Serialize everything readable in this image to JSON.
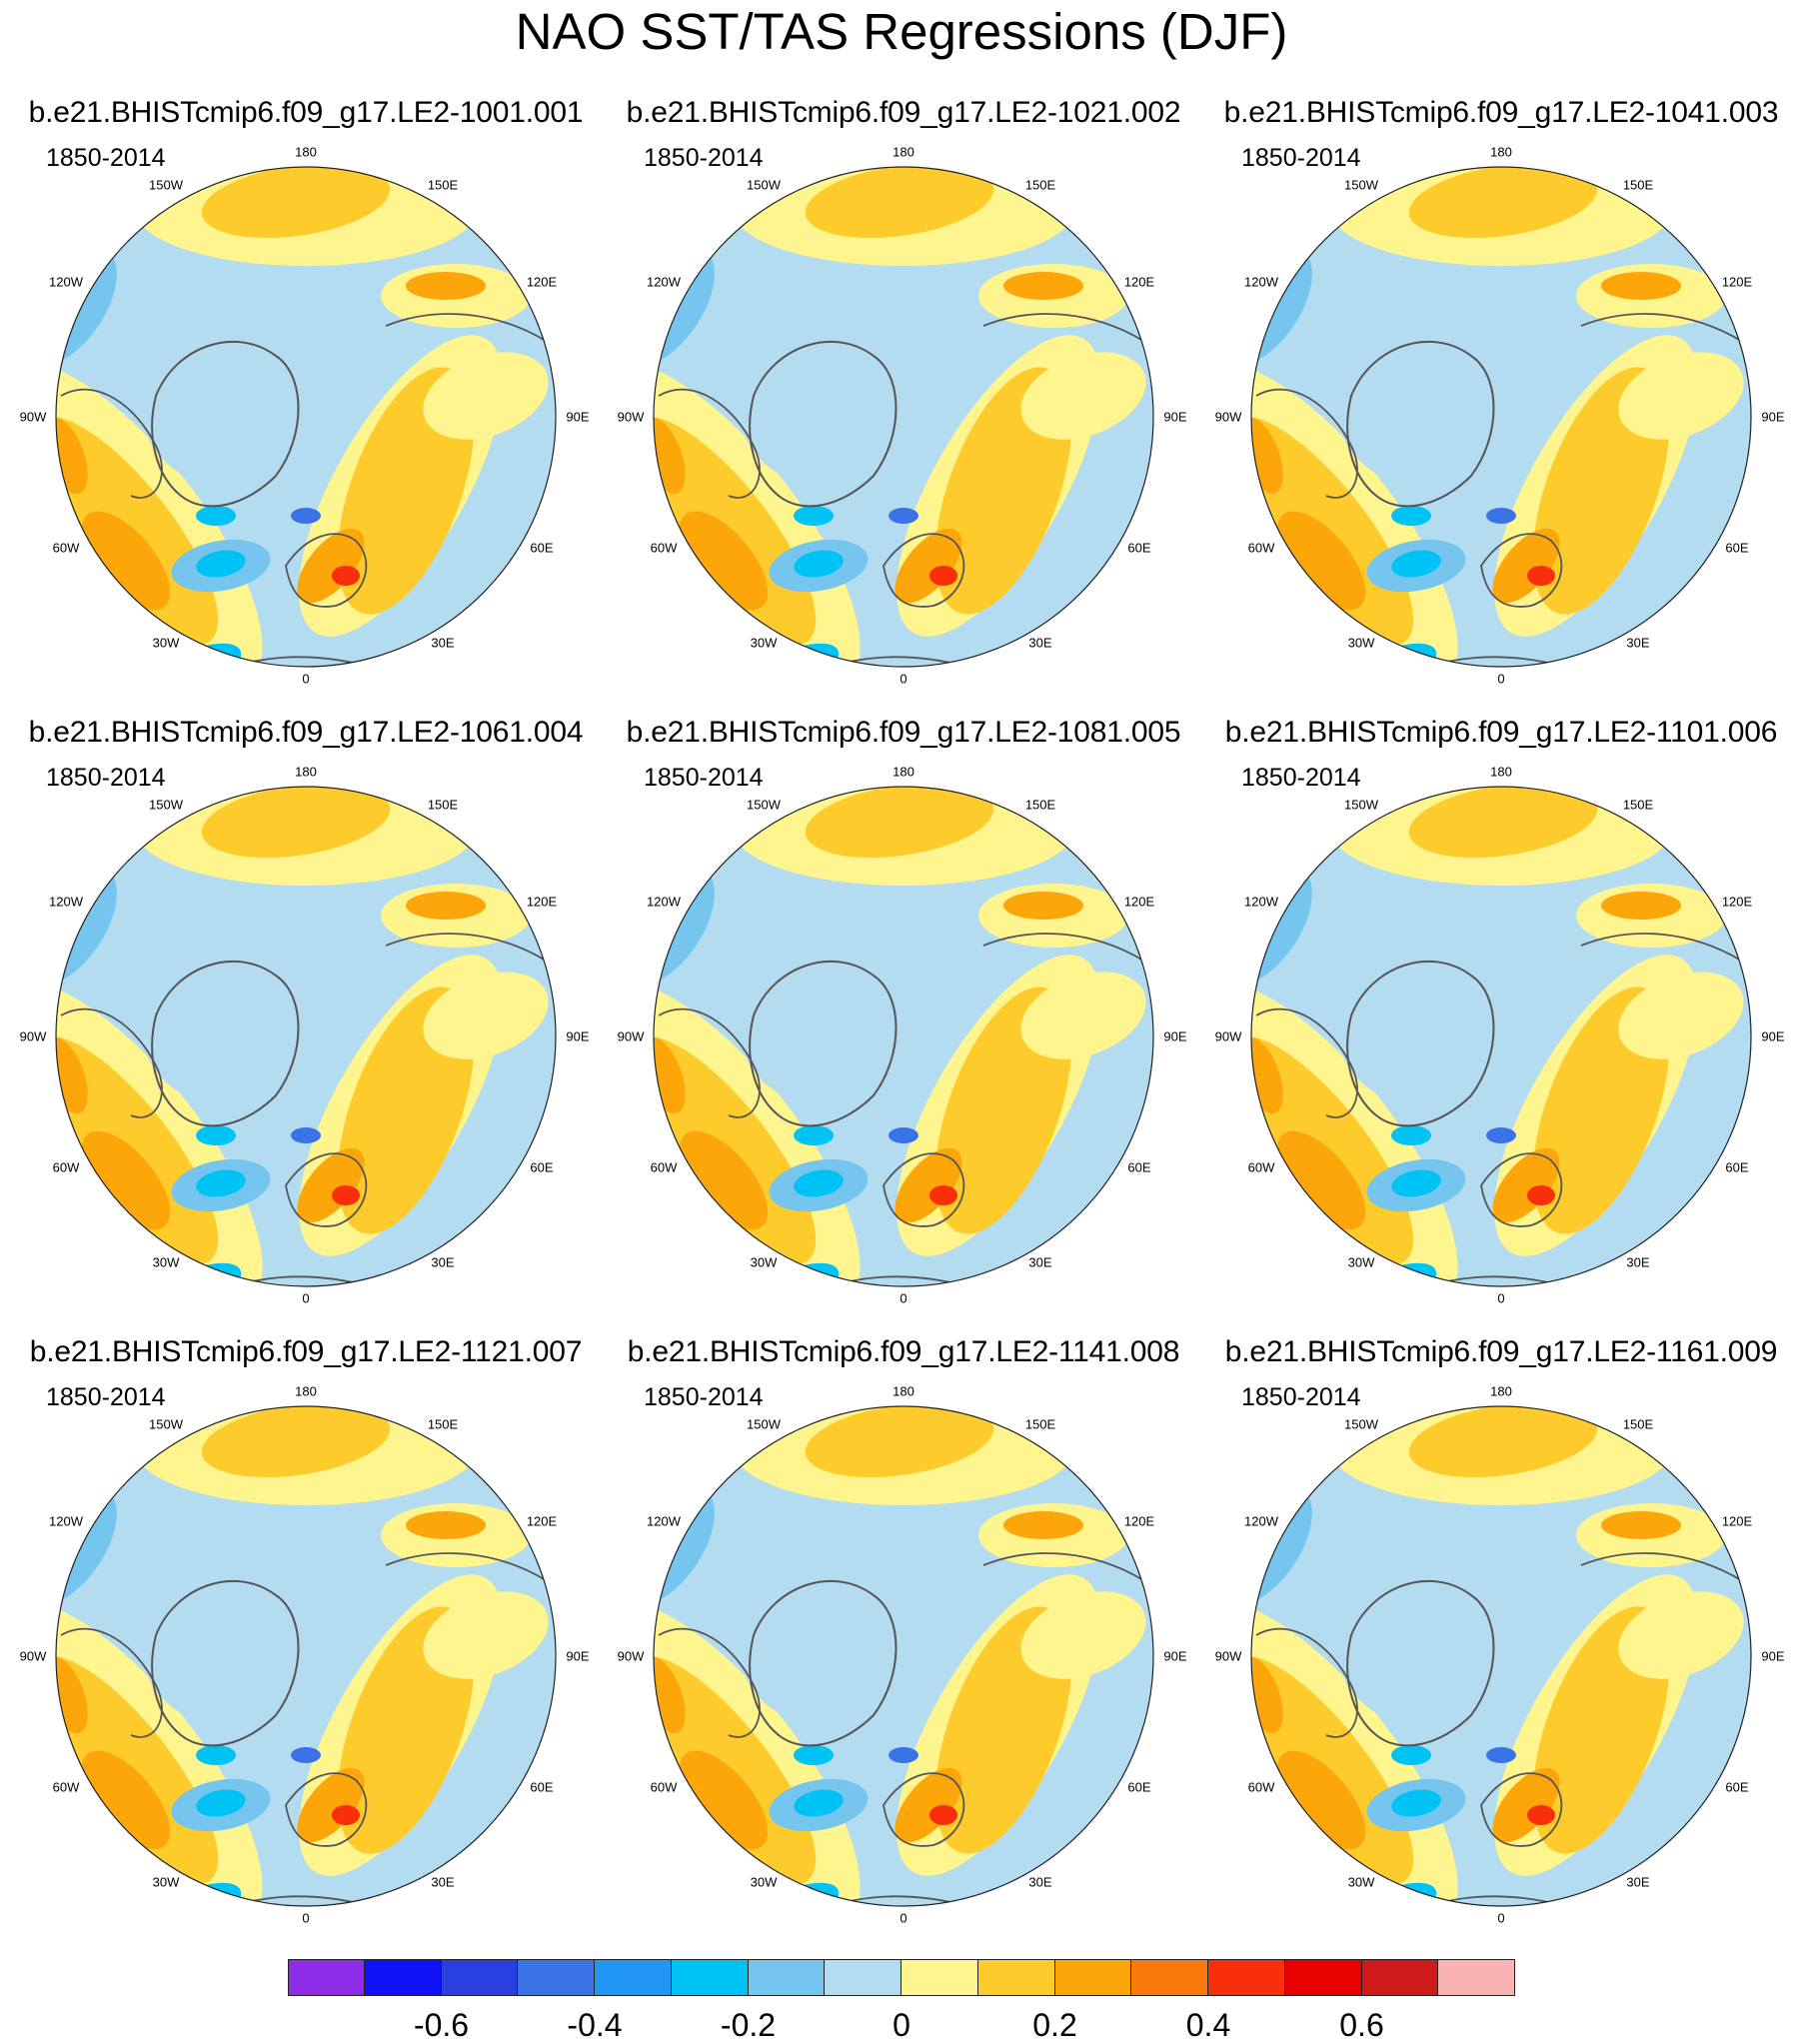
{
  "title": "NAO SST/TAS Regressions (DJF)",
  "period_label": "1850-2014",
  "longitude_labels": {
    "l180": "180",
    "l150E": "150E",
    "l120E": "120E",
    "l90E": "90E",
    "l60E": "60E",
    "l30E": "30E",
    "l0": "0",
    "l30W": "30W",
    "l60W": "60W",
    "l90W": "90W",
    "l120W": "120W",
    "l150W": "150W"
  },
  "panels": [
    {
      "case": "b.e21.BHISTcmip6.f09_g17.LE2-1001.001"
    },
    {
      "case": "b.e21.BHISTcmip6.f09_g17.LE2-1021.002"
    },
    {
      "case": "b.e21.BHISTcmip6.f09_g17.LE2-1041.003"
    },
    {
      "case": "b.e21.BHISTcmip6.f09_g17.LE2-1061.004"
    },
    {
      "case": "b.e21.BHISTcmip6.f09_g17.LE2-1081.005"
    },
    {
      "case": "b.e21.BHISTcmip6.f09_g17.LE2-1101.006"
    },
    {
      "case": "b.e21.BHISTcmip6.f09_g17.LE2-1121.007"
    },
    {
      "case": "b.e21.BHISTcmip6.f09_g17.LE2-1141.008"
    },
    {
      "case": "b.e21.BHISTcmip6.f09_g17.LE2-1161.009"
    }
  ],
  "colorbar": {
    "colors": [
      "#8e2de8",
      "#1111f5",
      "#2a3fe0",
      "#3a73e6",
      "#2196f3",
      "#00c3f5",
      "#76c5ef",
      "#b3dcf1",
      "#fef58f",
      "#fdcb2b",
      "#fca60a",
      "#fa7a0c",
      "#f92e0b",
      "#e70000",
      "#cf1a1a",
      "#fab3b3"
    ],
    "labels": [
      "-0.6",
      "-0.4",
      "-0.2",
      "0",
      "0.2",
      "0.4",
      "0.6"
    ]
  }
}
